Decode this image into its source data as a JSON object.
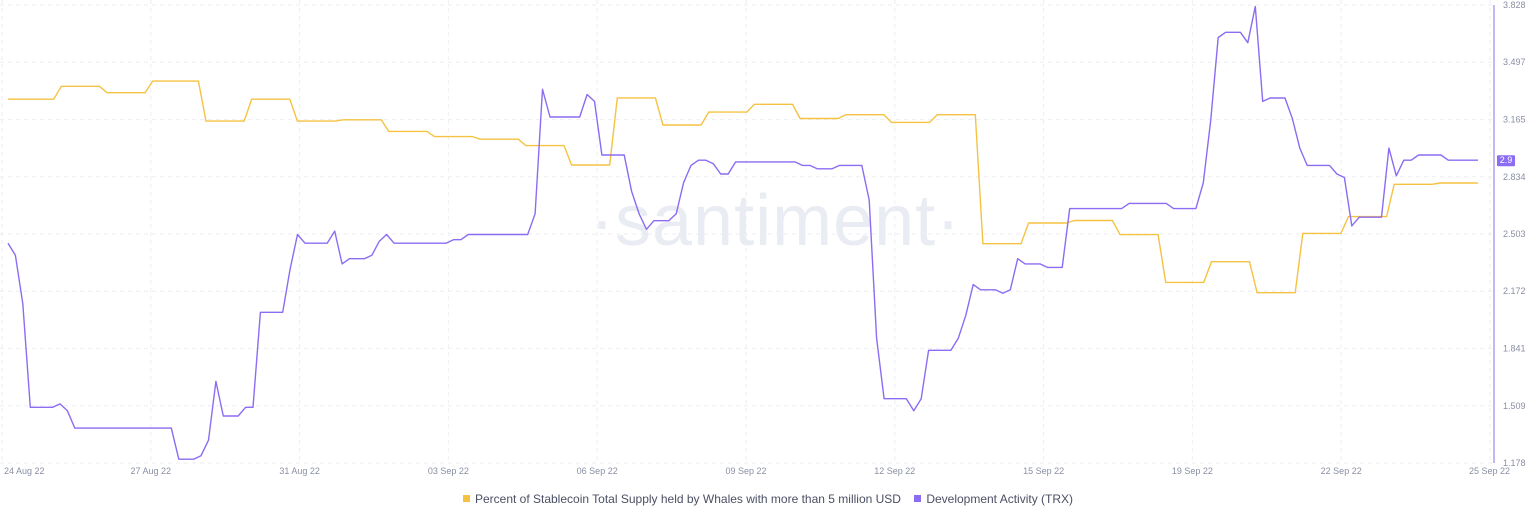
{
  "watermark": "·santiment·",
  "chart_data": {
    "type": "line",
    "x_ticks": [
      "24 Aug 22",
      "27 Aug 22",
      "31 Aug 22",
      "03 Sep 22",
      "06 Sep 22",
      "09 Sep 22",
      "12 Sep 22",
      "15 Sep 22",
      "19 Sep 22",
      "22 Sep 22",
      "25 Sep 22"
    ],
    "y_right_ticks": [
      "1.178",
      "1.509",
      "1.841",
      "2.172",
      "2.503",
      "2.834",
      "3.165",
      "3.497",
      "3.828"
    ],
    "ylim_right": [
      1.178,
      3.828
    ],
    "current_value_label": "2.9",
    "grid": true,
    "legend_position": "bottom-center",
    "series": [
      {
        "name": "Percent of Stablecoin Total Supply held by Whales with more than 5 million USD",
        "color": "#f5c242",
        "axis": "hidden",
        "values": [
          6.44,
          6.44,
          6.44,
          6.44,
          6.44,
          6.44,
          6.44,
          6.64,
          6.64,
          6.64,
          6.64,
          6.64,
          6.64,
          6.54,
          6.54,
          6.54,
          6.54,
          6.54,
          6.54,
          6.72,
          6.72,
          6.72,
          6.72,
          6.72,
          6.72,
          6.72,
          6.1,
          6.1,
          6.1,
          6.1,
          6.1,
          6.1,
          6.44,
          6.44,
          6.44,
          6.44,
          6.44,
          6.44,
          6.1,
          6.1,
          6.1,
          6.1,
          6.1,
          6.1,
          6.12,
          6.12,
          6.12,
          6.12,
          6.12,
          6.12,
          5.94,
          5.94,
          5.94,
          5.94,
          5.94,
          5.94,
          5.86,
          5.86,
          5.86,
          5.86,
          5.86,
          5.86,
          5.82,
          5.82,
          5.82,
          5.82,
          5.82,
          5.82,
          5.72,
          5.72,
          5.72,
          5.72,
          5.72,
          5.72,
          5.42,
          5.42,
          5.42,
          5.42,
          5.42,
          5.42,
          6.46,
          6.46,
          6.46,
          6.46,
          6.46,
          6.46,
          6.04,
          6.04,
          6.04,
          6.04,
          6.04,
          6.04,
          6.24,
          6.24,
          6.24,
          6.24,
          6.24,
          6.24,
          6.36,
          6.36,
          6.36,
          6.36,
          6.36,
          6.36,
          6.14,
          6.14,
          6.14,
          6.14,
          6.14,
          6.14,
          6.2,
          6.2,
          6.2,
          6.2,
          6.2,
          6.2,
          6.08,
          6.08,
          6.08,
          6.08,
          6.08,
          6.08,
          6.2,
          6.2,
          6.2,
          6.2,
          6.2,
          6.2,
          4.2,
          4.2,
          4.2,
          4.2,
          4.2,
          4.2,
          4.52,
          4.52,
          4.52,
          4.52,
          4.52,
          4.52,
          4.56,
          4.56,
          4.56,
          4.56,
          4.56,
          4.56,
          4.34,
          4.34,
          4.34,
          4.34,
          4.34,
          4.34,
          3.6,
          3.6,
          3.6,
          3.6,
          3.6,
          3.6,
          3.92,
          3.92,
          3.92,
          3.92,
          3.92,
          3.92,
          3.44,
          3.44,
          3.44,
          3.44,
          3.44,
          3.44,
          4.36,
          4.36,
          4.36,
          4.36,
          4.36,
          4.36,
          4.62,
          4.62,
          4.62,
          4.62,
          4.62,
          4.62,
          5.12,
          5.12,
          5.12,
          5.12,
          5.12,
          5.12,
          5.14,
          5.14,
          5.14,
          5.14,
          5.14,
          5.14
        ]
      },
      {
        "name": "Development Activity (TRX)",
        "color": "#8b6cf2",
        "axis": "right",
        "values": [
          2.45,
          2.38,
          2.1,
          1.5,
          1.5,
          1.5,
          1.5,
          1.52,
          1.48,
          1.38,
          1.38,
          1.38,
          1.38,
          1.38,
          1.38,
          1.38,
          1.38,
          1.38,
          1.38,
          1.38,
          1.38,
          1.38,
          1.38,
          1.2,
          1.2,
          1.2,
          1.22,
          1.31,
          1.65,
          1.45,
          1.45,
          1.45,
          1.5,
          1.5,
          2.05,
          2.05,
          2.05,
          2.05,
          2.3,
          2.5,
          2.45,
          2.45,
          2.45,
          2.45,
          2.52,
          2.33,
          2.36,
          2.36,
          2.36,
          2.38,
          2.46,
          2.5,
          2.45,
          2.45,
          2.45,
          2.45,
          2.45,
          2.45,
          2.45,
          2.45,
          2.47,
          2.47,
          2.5,
          2.5,
          2.5,
          2.5,
          2.5,
          2.5,
          2.5,
          2.5,
          2.5,
          2.62,
          3.34,
          3.18,
          3.18,
          3.18,
          3.18,
          3.18,
          3.31,
          3.27,
          2.96,
          2.96,
          2.96,
          2.96,
          2.75,
          2.62,
          2.53,
          2.58,
          2.58,
          2.58,
          2.62,
          2.8,
          2.9,
          2.93,
          2.93,
          2.91,
          2.85,
          2.85,
          2.92,
          2.92,
          2.92,
          2.92,
          2.92,
          2.92,
          2.92,
          2.92,
          2.92,
          2.9,
          2.9,
          2.88,
          2.88,
          2.88,
          2.9,
          2.9,
          2.9,
          2.9,
          2.7,
          1.9,
          1.55,
          1.55,
          1.55,
          1.55,
          1.48,
          1.55,
          1.83,
          1.83,
          1.83,
          1.83,
          1.9,
          2.03,
          2.21,
          2.18,
          2.18,
          2.18,
          2.16,
          2.18,
          2.36,
          2.33,
          2.33,
          2.33,
          2.31,
          2.31,
          2.31,
          2.65,
          2.65,
          2.65,
          2.65,
          2.65,
          2.65,
          2.65,
          2.65,
          2.68,
          2.68,
          2.68,
          2.68,
          2.68,
          2.68,
          2.65,
          2.65,
          2.65,
          2.65,
          2.8,
          3.16,
          3.64,
          3.67,
          3.67,
          3.67,
          3.61,
          3.82,
          3.27,
          3.29,
          3.29,
          3.29,
          3.17,
          3.0,
          2.9,
          2.9,
          2.9,
          2.9,
          2.85,
          2.83,
          2.55,
          2.6,
          2.6,
          2.6,
          2.6,
          3.0,
          2.84,
          2.93,
          2.93,
          2.96,
          2.96,
          2.96,
          2.96,
          2.93,
          2.93,
          2.93,
          2.93,
          2.93
        ]
      }
    ]
  }
}
